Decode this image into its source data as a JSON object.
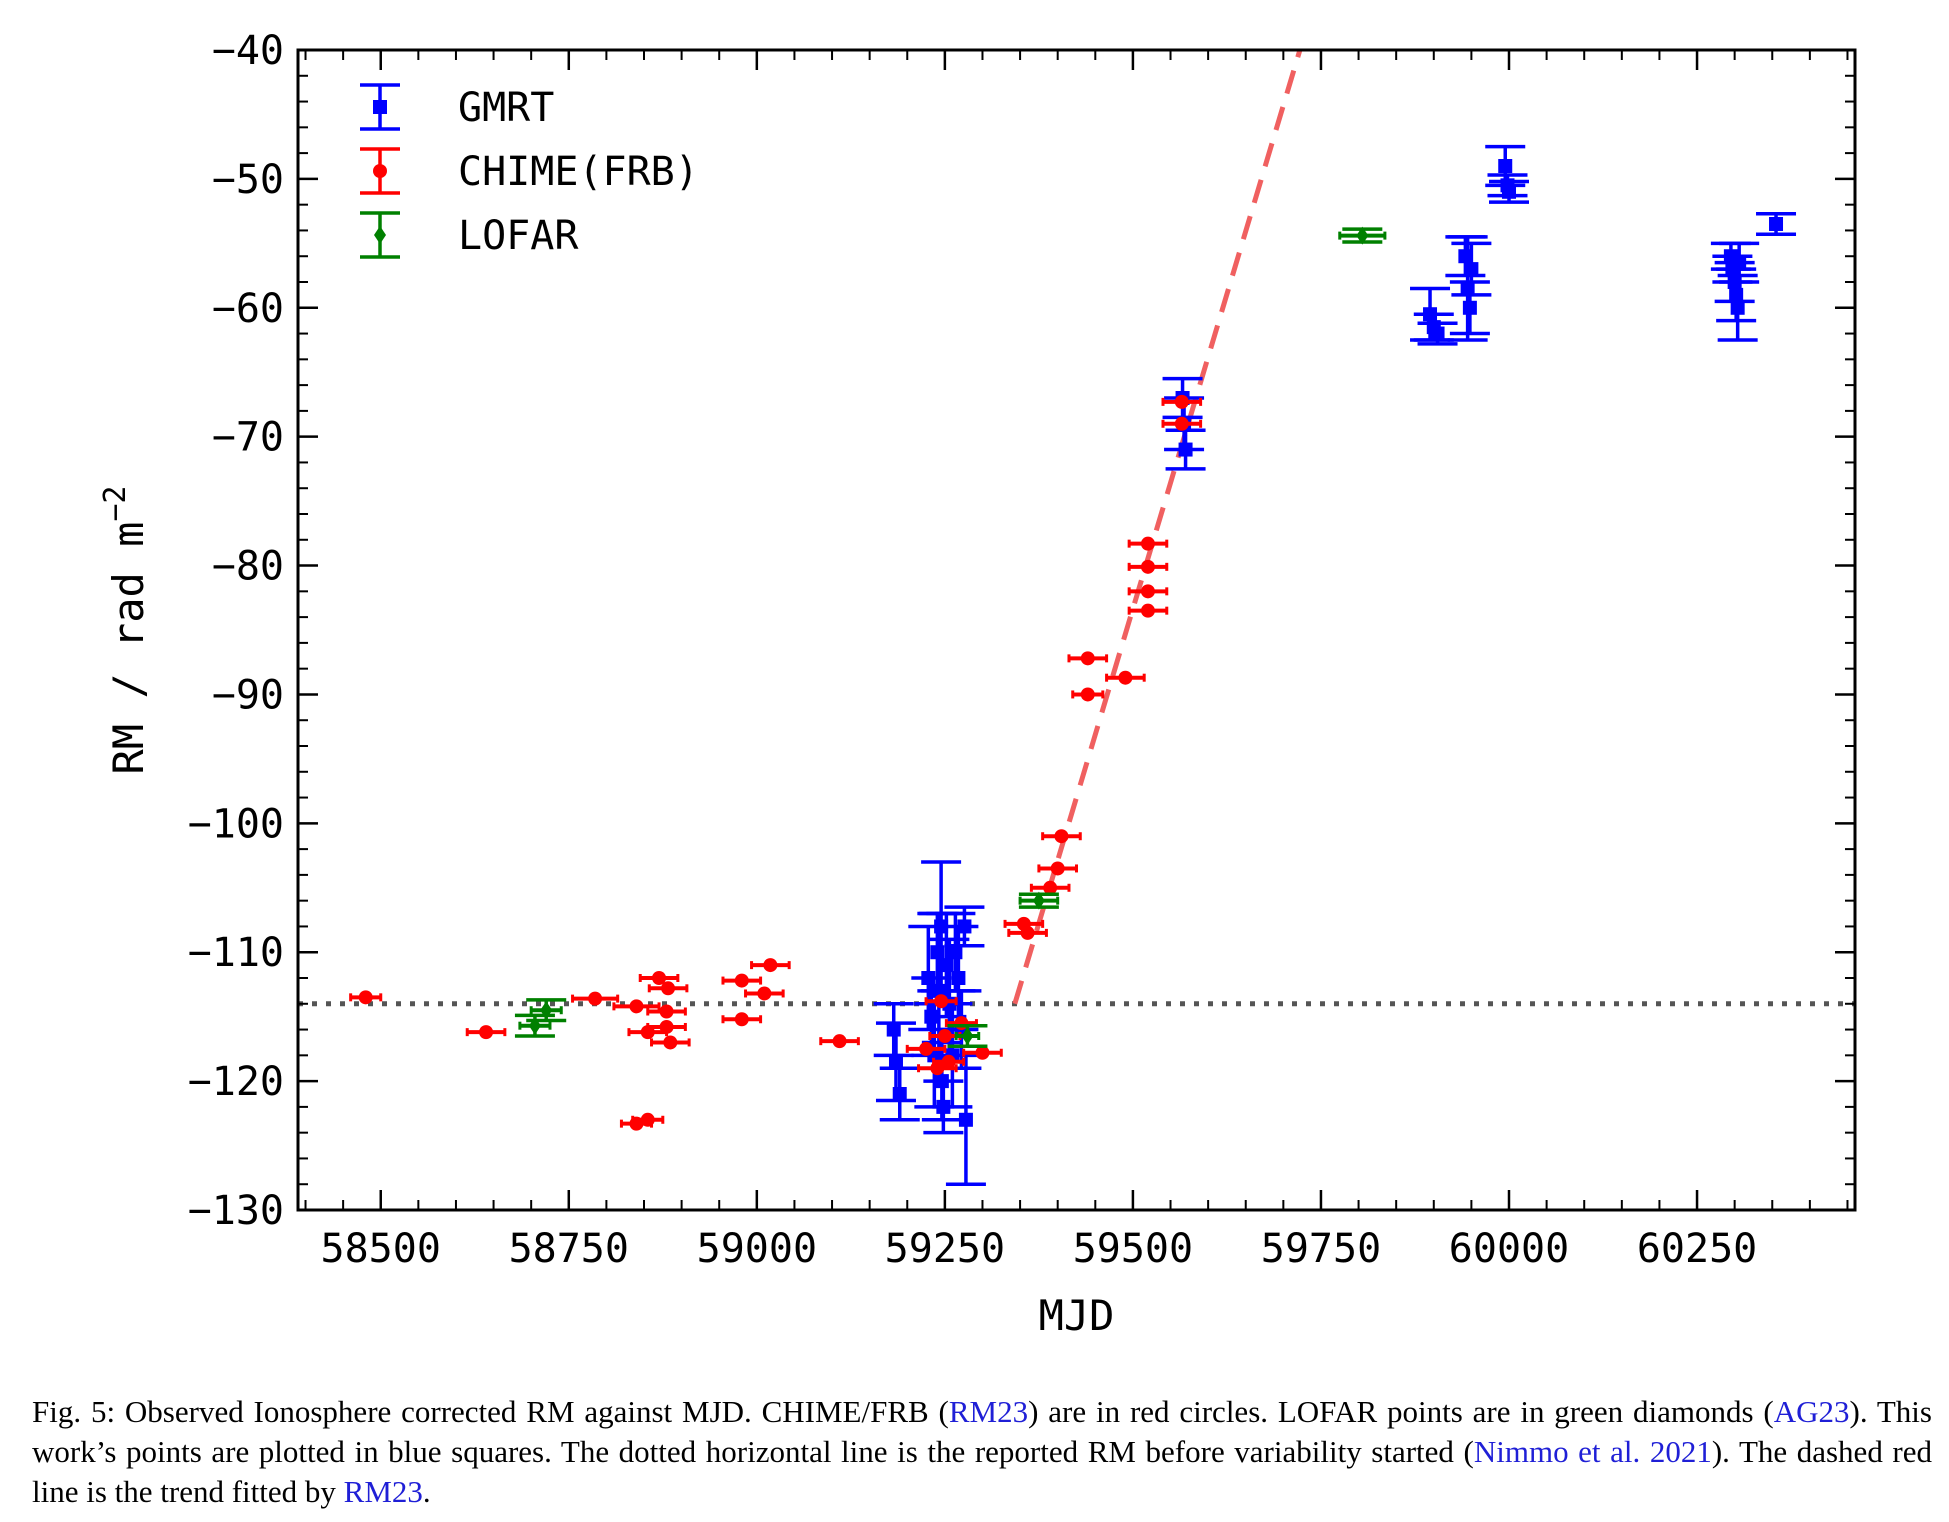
{
  "chart_data": {
    "type": "scatter",
    "xlabel": "MJD",
    "ylabel": "RM / rad m",
    "ylabel_sup": "−2",
    "xlim": [
      58390,
      60460
    ],
    "ylim": [
      -130,
      -40
    ],
    "xticks": [
      58500,
      58750,
      59000,
      59250,
      59500,
      59750,
      60000,
      60250
    ],
    "yticks": [
      -130,
      -120,
      -110,
      -100,
      -90,
      -80,
      -70,
      -60,
      -50,
      -40
    ],
    "xtick_labels": [
      "58500",
      "58750",
      "59000",
      "59250",
      "59500",
      "59750",
      "60000",
      "60250"
    ],
    "ytick_labels": [
      "−130",
      "−120",
      "−110",
      "−100",
      "−90",
      "−80",
      "−70",
      "−60",
      "−50",
      "−40"
    ],
    "legend_position": "top-left",
    "series": [
      {
        "name": "GMRT",
        "color": "#0000ff",
        "marker": "square",
        "points": [
          {
            "x": 59182,
            "y": -116,
            "yerr": 2
          },
          {
            "x": 59185,
            "y": -118.5,
            "yerr": 3
          },
          {
            "x": 59190,
            "y": -121,
            "yerr": 2
          },
          {
            "x": 59228,
            "y": -112,
            "yerr": 4
          },
          {
            "x": 59232,
            "y": -115,
            "yerr": 3
          },
          {
            "x": 59236,
            "y": -118,
            "yerr": 4
          },
          {
            "x": 59240,
            "y": -110,
            "yerr": 3
          },
          {
            "x": 59242,
            "y": -113,
            "yerr": 6
          },
          {
            "x": 59245,
            "y": -108,
            "yerr": 5
          },
          {
            "x": 59246,
            "y": -120,
            "yerr": 3
          },
          {
            "x": 59248,
            "y": -122,
            "yerr": 2
          },
          {
            "x": 59252,
            "y": -111,
            "yerr": 4
          },
          {
            "x": 59256,
            "y": -114,
            "yerr": 5
          },
          {
            "x": 59260,
            "y": -118,
            "yerr": 4
          },
          {
            "x": 59264,
            "y": -110,
            "yerr": 3
          },
          {
            "x": 59268,
            "y": -112,
            "yerr": 4
          },
          {
            "x": 59272,
            "y": -116,
            "yerr": 3
          },
          {
            "x": 59276,
            "y": -108,
            "yerr": 1.5
          },
          {
            "x": 59278,
            "y": -123,
            "yerr": 5
          },
          {
            "x": 59566,
            "y": -67,
            "yerr": 1.5
          },
          {
            "x": 59568,
            "y": -69,
            "yerr": 2
          },
          {
            "x": 59570,
            "y": -71,
            "yerr": 1.5
          },
          {
            "x": 59895,
            "y": -60.5,
            "yerr": 2
          },
          {
            "x": 59900,
            "y": -61.5,
            "yerr": 1
          },
          {
            "x": 59905,
            "y": -62,
            "yerr": 0.8
          },
          {
            "x": 59942,
            "y": -56,
            "yerr": 1.5
          },
          {
            "x": 59945,
            "y": -58.5,
            "yerr": 4
          },
          {
            "x": 59948,
            "y": -60,
            "yerr": 2
          },
          {
            "x": 59950,
            "y": -57,
            "yerr": 2
          },
          {
            "x": 59995,
            "y": -49,
            "yerr": 1.5
          },
          {
            "x": 59998,
            "y": -50.5,
            "yerr": 0.8
          },
          {
            "x": 60000,
            "y": -51,
            "yerr": 0.8
          },
          {
            "x": 60295,
            "y": -56,
            "yerr": 1
          },
          {
            "x": 60297,
            "y": -57,
            "yerr": 1
          },
          {
            "x": 60300,
            "y": -58,
            "yerr": 1.5
          },
          {
            "x": 60302,
            "y": -59,
            "yerr": 2
          },
          {
            "x": 60304,
            "y": -60,
            "yerr": 2.5
          },
          {
            "x": 60306,
            "y": -56.5,
            "yerr": 1.5
          },
          {
            "x": 60355,
            "y": -53.5,
            "yerr": 0.8
          }
        ]
      },
      {
        "name": "CHIME(FRB)",
        "color": "#ff0000",
        "marker": "circle",
        "points": [
          {
            "x": 58480,
            "y": -113.5,
            "xerr": 20
          },
          {
            "x": 58640,
            "y": -116.2,
            "xerr": 25
          },
          {
            "x": 58785,
            "y": -113.6,
            "xerr": 30
          },
          {
            "x": 58840,
            "y": -114.2,
            "xerr": 30
          },
          {
            "x": 58840,
            "y": -123.3,
            "xerr": 20
          },
          {
            "x": 58855,
            "y": -123.0,
            "xerr": 20
          },
          {
            "x": 58855,
            "y": -116.2,
            "xerr": 25
          },
          {
            "x": 58870,
            "y": -112.0,
            "xerr": 25
          },
          {
            "x": 58882,
            "y": -112.8,
            "xerr": 25
          },
          {
            "x": 58880,
            "y": -114.6,
            "xerr": 25
          },
          {
            "x": 58880,
            "y": -115.8,
            "xerr": 25
          },
          {
            "x": 58885,
            "y": -117.0,
            "xerr": 25
          },
          {
            "x": 58980,
            "y": -112.2,
            "xerr": 25
          },
          {
            "x": 58980,
            "y": -115.2,
            "xerr": 25
          },
          {
            "x": 59010,
            "y": -113.2,
            "xerr": 25
          },
          {
            "x": 59018,
            "y": -111.0,
            "xerr": 25
          },
          {
            "x": 59110,
            "y": -116.9,
            "xerr": 25
          },
          {
            "x": 59225,
            "y": -117.5,
            "xerr": 25
          },
          {
            "x": 59240,
            "y": -119.0,
            "xerr": 25
          },
          {
            "x": 59245,
            "y": -113.8,
            "xerr": 20
          },
          {
            "x": 59250,
            "y": -116.5,
            "xerr": 20
          },
          {
            "x": 59255,
            "y": -118.5,
            "xerr": 20
          },
          {
            "x": 59272,
            "y": -115.5,
            "xerr": 20
          },
          {
            "x": 59300,
            "y": -117.8,
            "xerr": 25
          },
          {
            "x": 59355,
            "y": -107.8,
            "xerr": 25
          },
          {
            "x": 59360,
            "y": -108.5,
            "xerr": 25
          },
          {
            "x": 59390,
            "y": -105.0,
            "xerr": 25
          },
          {
            "x": 59400,
            "y": -103.5,
            "xerr": 25
          },
          {
            "x": 59405,
            "y": -101.0,
            "xerr": 25
          },
          {
            "x": 59440,
            "y": -87.2,
            "xerr": 25
          },
          {
            "x": 59440,
            "y": -90.0,
            "xerr": 20
          },
          {
            "x": 59490,
            "y": -88.7,
            "xerr": 25
          },
          {
            "x": 59520,
            "y": -78.3,
            "xerr": 25
          },
          {
            "x": 59520,
            "y": -80.1,
            "xerr": 25
          },
          {
            "x": 59520,
            "y": -82.0,
            "xerr": 25
          },
          {
            "x": 59520,
            "y": -83.5,
            "xerr": 25
          },
          {
            "x": 59565,
            "y": -67.3,
            "xerr": 25
          },
          {
            "x": 59565,
            "y": -69.0,
            "xerr": 25
          }
        ]
      },
      {
        "name": "LOFAR",
        "color": "#008000",
        "marker": "diamond",
        "points": [
          {
            "x": 58705,
            "y": -115.7,
            "xerr": 20,
            "yerr": 0.8
          },
          {
            "x": 58720,
            "y": -114.5,
            "xerr": 20,
            "yerr": 0.8
          },
          {
            "x": 59280,
            "y": -116.5,
            "xerr": 15,
            "yerr": 0.8
          },
          {
            "x": 59375,
            "y": -106.0,
            "xerr": 25,
            "yerr": 0.5
          },
          {
            "x": 59805,
            "y": -54.4,
            "xerr": 30,
            "yerr": 0.5
          }
        ]
      }
    ],
    "reference_lines": [
      {
        "kind": "horizontal",
        "style": "dotted",
        "color": "#555555",
        "y": -114
      },
      {
        "kind": "trend",
        "style": "dashed",
        "color": "#f06060",
        "x1": 59343,
        "y1": -114,
        "x2": 59722,
        "y2": -40
      }
    ]
  },
  "caption": {
    "p1": "Fig. 5: Observed Ionosphere corrected RM against MJD. CHIME/FRB (",
    "r1": "RM23",
    "p2": ") are in red circles. LOFAR points are in green diamonds (",
    "r2": "AG23",
    "p3": "). This work’s points are plotted in blue squares. The dotted horizontal line is the reported RM before variability started (",
    "r3": "Nimmo et al. 2021",
    "p4": "). The dashed red line is the trend fitted by ",
    "r4": "RM23",
    "p5": "."
  }
}
